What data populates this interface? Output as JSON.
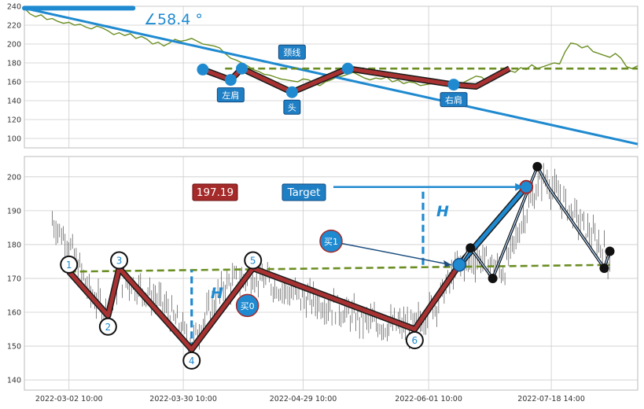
{
  "colors": {
    "price": "#6b8e23",
    "trend": "#1f8ad0",
    "neck": "#6b8e23",
    "zig": "#a83232",
    "zigDark": "#1a1a1a",
    "node": "#1f8ad0",
    "label_bg": "#1f7fc4",
    "price_box": "#a52a2a",
    "grid": "#cccccc"
  },
  "chart_data": [
    {
      "type": "line",
      "title": "",
      "ylim": [
        90,
        240
      ],
      "yticks": [
        100,
        120,
        140,
        160,
        180,
        200,
        220,
        240
      ],
      "xlim": [
        0,
        110
      ],
      "grid": true,
      "angle_label": "∠58.4 °",
      "price_series": [
        [
          0,
          238
        ],
        [
          1,
          232
        ],
        [
          2,
          229
        ],
        [
          3,
          231
        ],
        [
          4,
          226
        ],
        [
          5,
          227
        ],
        [
          6,
          224
        ],
        [
          7,
          222
        ],
        [
          8,
          223
        ],
        [
          9,
          220
        ],
        [
          10,
          221
        ],
        [
          11,
          218
        ],
        [
          12,
          216
        ],
        [
          13,
          219
        ],
        [
          14,
          217
        ],
        [
          15,
          214
        ],
        [
          16,
          210
        ],
        [
          17,
          212
        ],
        [
          18,
          209
        ],
        [
          19,
          211
        ],
        [
          20,
          206
        ],
        [
          21,
          208
        ],
        [
          22,
          205
        ],
        [
          23,
          200
        ],
        [
          24,
          202
        ],
        [
          25,
          198
        ],
        [
          26,
          201
        ],
        [
          27,
          205
        ],
        [
          28,
          203
        ],
        [
          29,
          204
        ],
        [
          30,
          206
        ],
        [
          31,
          203
        ],
        [
          32,
          200
        ],
        [
          33,
          199
        ],
        [
          34,
          198
        ],
        [
          35,
          196
        ],
        [
          36,
          190
        ],
        [
          37,
          185
        ],
        [
          38,
          183
        ],
        [
          39,
          180
        ],
        [
          40,
          177
        ],
        [
          41,
          173
        ],
        [
          42,
          171
        ],
        [
          43,
          168
        ],
        [
          44,
          167
        ],
        [
          45,
          165
        ],
        [
          46,
          163
        ],
        [
          47,
          162
        ],
        [
          48,
          161
        ],
        [
          49,
          160
        ],
        [
          50,
          163
        ],
        [
          51,
          162
        ],
        [
          52,
          158
        ],
        [
          53,
          156
        ],
        [
          54,
          160
        ],
        [
          55,
          162
        ],
        [
          56,
          165
        ],
        [
          57,
          166
        ],
        [
          58,
          168
        ],
        [
          59,
          170
        ],
        [
          60,
          167
        ],
        [
          61,
          164
        ],
        [
          62,
          162
        ],
        [
          63,
          164
        ],
        [
          64,
          163
        ],
        [
          65,
          165
        ],
        [
          66,
          160
        ],
        [
          67,
          162
        ],
        [
          68,
          158
        ],
        [
          69,
          160
        ],
        [
          70,
          159
        ],
        [
          71,
          156
        ],
        [
          72,
          157
        ],
        [
          73,
          158
        ],
        [
          74,
          160
        ],
        [
          75,
          159
        ],
        [
          76,
          157
        ],
        [
          77,
          158
        ],
        [
          78,
          156
        ],
        [
          79,
          160
        ],
        [
          80,
          163
        ],
        [
          81,
          166
        ],
        [
          82,
          165
        ],
        [
          83,
          160
        ],
        [
          84,
          163
        ],
        [
          85,
          168
        ],
        [
          86,
          170
        ],
        [
          87,
          172
        ],
        [
          88,
          170
        ],
        [
          89,
          175
        ],
        [
          90,
          173
        ],
        [
          91,
          178
        ],
        [
          92,
          174
        ],
        [
          93,
          176
        ],
        [
          94,
          178
        ],
        [
          95,
          180
        ],
        [
          96,
          179
        ],
        [
          97,
          192
        ],
        [
          98,
          201
        ],
        [
          99,
          200
        ],
        [
          100,
          196
        ],
        [
          101,
          198
        ],
        [
          102,
          192
        ],
        [
          103,
          190
        ],
        [
          104,
          188
        ],
        [
          105,
          186
        ],
        [
          106,
          190
        ],
        [
          107,
          185
        ],
        [
          108,
          176
        ],
        [
          109,
          174
        ],
        [
          110,
          177
        ]
      ],
      "trend_line": [
        [
          0,
          238
        ],
        [
          110,
          94
        ]
      ],
      "neckline": [
        [
          36,
          174
        ],
        [
          110,
          174
        ]
      ],
      "zigzag": [
        [
          32,
          173
        ],
        [
          37,
          162
        ],
        [
          39,
          174
        ],
        [
          48,
          149
        ],
        [
          58,
          174
        ],
        [
          77,
          157
        ],
        [
          81,
          155
        ],
        [
          87,
          174
        ]
      ],
      "labels": [
        {
          "text": "左肩",
          "x": 37,
          "y": 162,
          "pos": "below"
        },
        {
          "text": "头",
          "x": 48,
          "y": 149,
          "pos": "below"
        },
        {
          "text": "颈线",
          "x": 48,
          "y": 174,
          "pos": "above"
        },
        {
          "text": "右肩",
          "x": 77,
          "y": 157,
          "pos": "below"
        }
      ]
    },
    {
      "type": "candlestick",
      "title": "",
      "ylim": [
        137,
        206
      ],
      "yticks": [
        140,
        150,
        160,
        170,
        180,
        190,
        200
      ],
      "xlim": [
        0,
        110
      ],
      "xticks": [
        "2022-03-02 10:00",
        "2022-03-30 10:00",
        "2022-04-29 10:00",
        "2022-06-01 10:00",
        "2022-07-18 14:00"
      ],
      "grid": true,
      "price_box": "197.19",
      "target_label": "Target",
      "height_label": "H",
      "buy_labels": [
        "买0",
        "买1"
      ],
      "points": [
        {
          "n": "1",
          "x": 8,
          "y": 172
        },
        {
          "n": "2",
          "x": 15,
          "y": 159
        },
        {
          "n": "3",
          "x": 17,
          "y": 173
        },
        {
          "n": "4",
          "x": 30,
          "y": 149
        },
        {
          "n": "5",
          "x": 41,
          "y": 173
        },
        {
          "n": "6",
          "x": 70,
          "y": 155
        }
      ],
      "neckline": [
        [
          8,
          172
        ],
        [
          105,
          174
        ]
      ],
      "zigzag": [
        [
          8,
          172
        ],
        [
          15,
          159
        ],
        [
          17,
          173
        ],
        [
          30,
          149
        ],
        [
          41,
          173
        ],
        [
          70,
          155
        ],
        [
          78,
          174
        ]
      ],
      "target_path": [
        [
          78,
          174
        ],
        [
          90,
          197
        ]
      ],
      "black_path": [
        [
          78,
          174
        ],
        [
          80,
          179
        ],
        [
          84,
          170
        ],
        [
          92,
          203
        ],
        [
          94,
          197
        ],
        [
          104,
          173
        ],
        [
          105,
          178
        ]
      ],
      "black_dots": [
        [
          80,
          179
        ],
        [
          84,
          170
        ],
        [
          92,
          203
        ],
        [
          104,
          173
        ],
        [
          105,
          178
        ]
      ],
      "target_level": 197,
      "buy0": {
        "x": 40,
        "y": 162
      },
      "buy1": {
        "x": 55,
        "y": 181,
        "tx": 78,
        "ty": 174
      }
    }
  ]
}
